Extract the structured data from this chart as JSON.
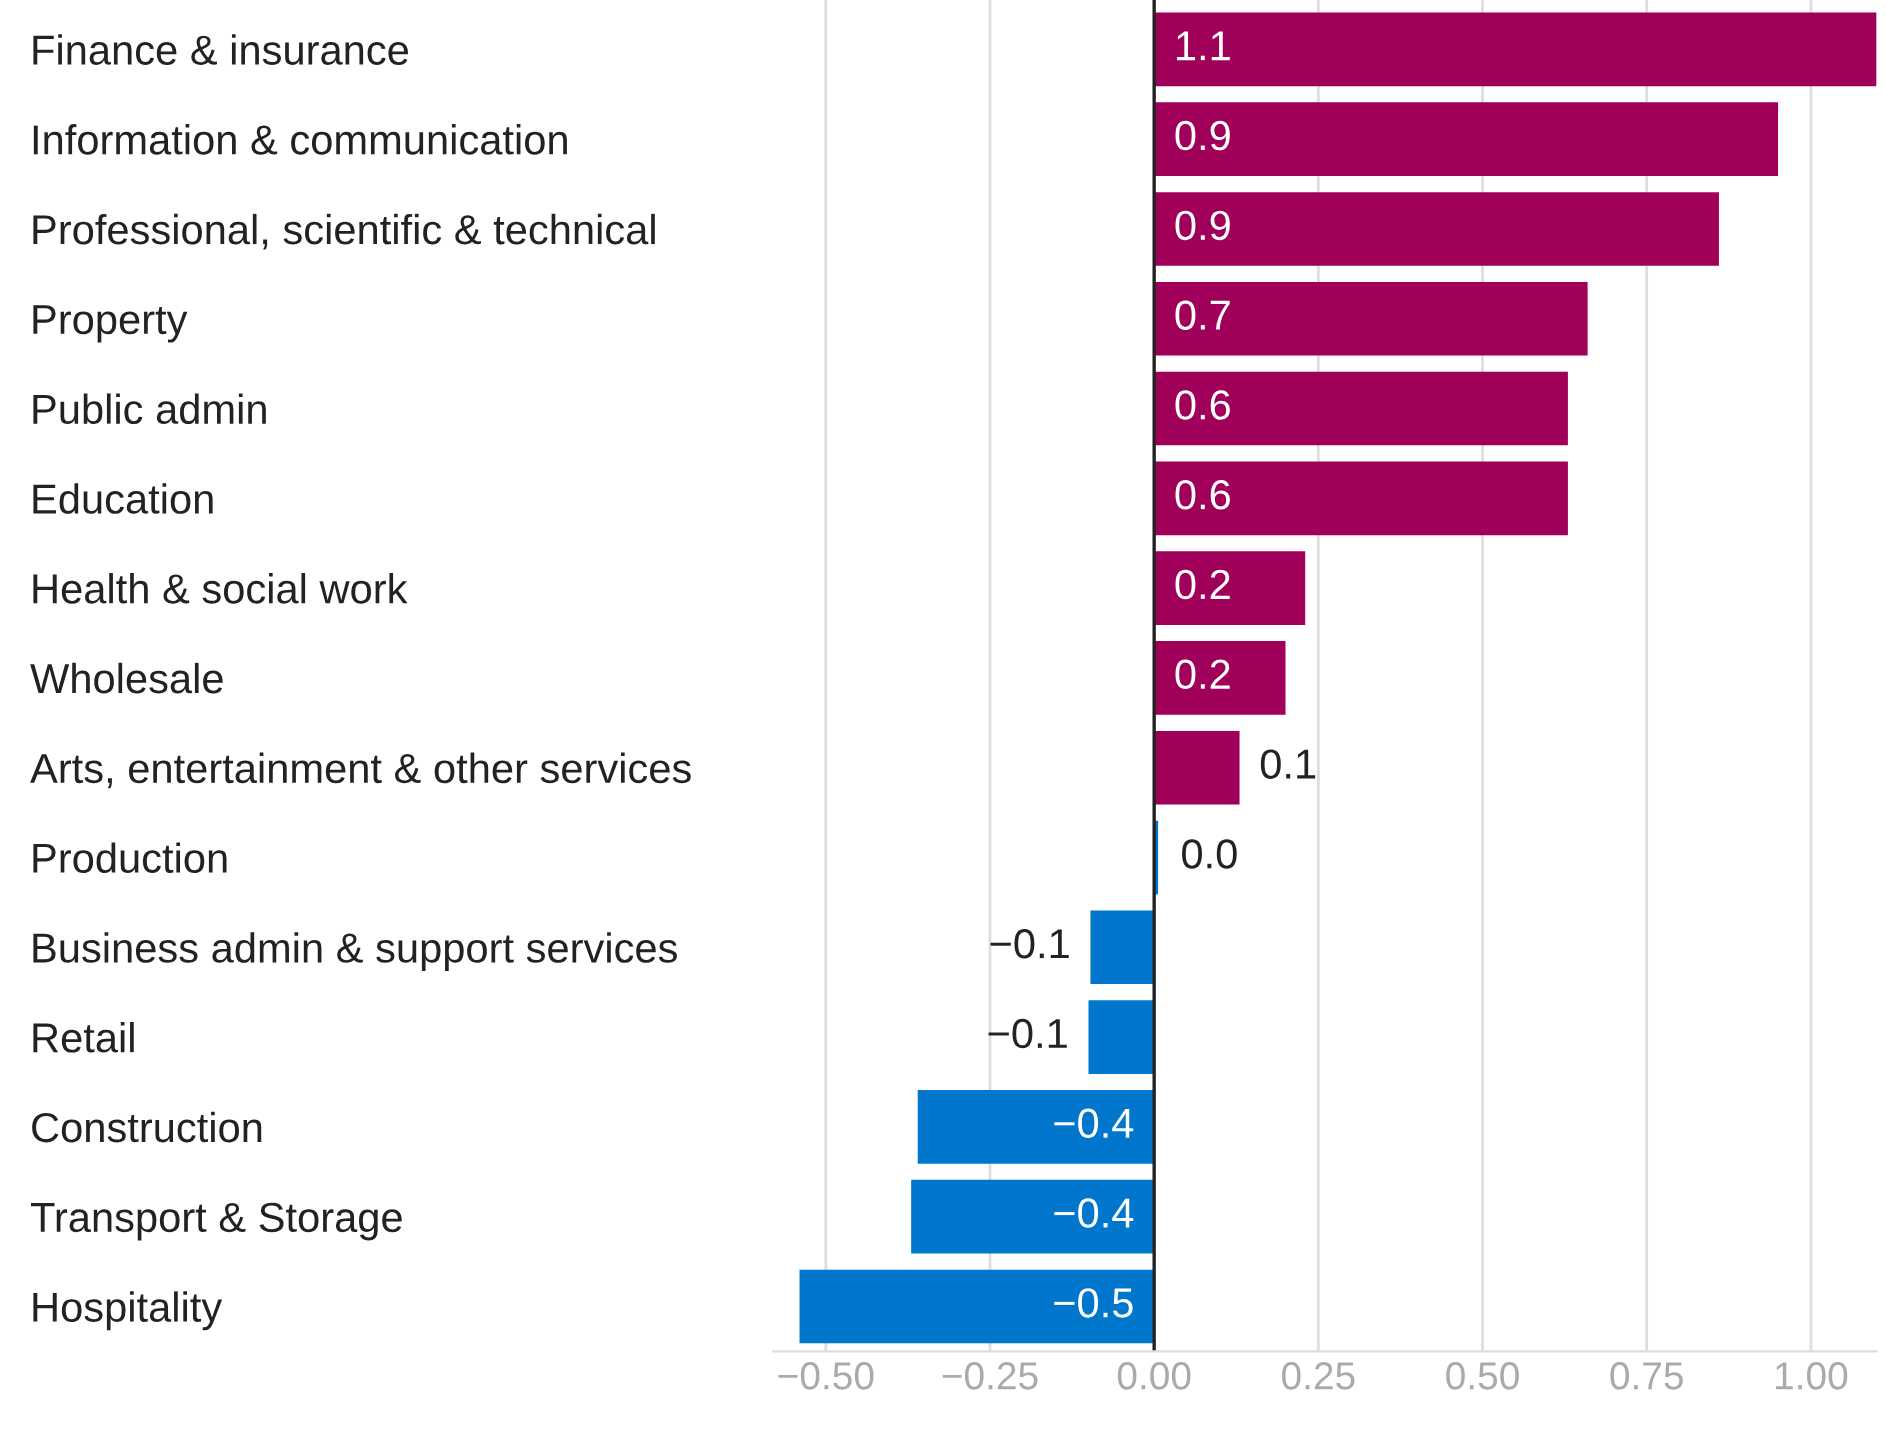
{
  "chart_data": {
    "type": "bar",
    "orientation": "horizontal",
    "categories": [
      "Finance & insurance",
      "Information & communication",
      "Professional, scientific & technical",
      "Property",
      "Public admin",
      "Education",
      "Health & social work",
      "Wholesale",
      "Arts, entertainment & other services",
      "Production",
      "Business admin & support services",
      "Retail",
      "Construction",
      "Transport & Storage",
      "Hospitality"
    ],
    "values": [
      1.1,
      0.95,
      0.86,
      0.66,
      0.63,
      0.63,
      0.23,
      0.2,
      0.13,
      0.006,
      -0.097,
      -0.1,
      -0.36,
      -0.37,
      -0.54
    ],
    "value_labels": [
      "1.1",
      "0.9",
      "0.9",
      "0.7",
      "0.6",
      "0.6",
      "0.2",
      "0.2",
      "0.1",
      "0.0",
      "−0.1",
      "−0.1",
      "−0.4",
      "−0.4",
      "−0.5"
    ],
    "colors": [
      "#a0005a",
      "#a0005a",
      "#a0005a",
      "#a0005a",
      "#a0005a",
      "#a0005a",
      "#a0005a",
      "#a0005a",
      "#a0005a",
      "#0077cc",
      "#0077cc",
      "#0077cc",
      "#0077cc",
      "#0077cc",
      "#0077cc"
    ],
    "xlim": [
      -0.58,
      1.1
    ],
    "xticks": [
      {
        "value": -0.5,
        "label": "−0.50"
      },
      {
        "value": -0.25,
        "label": "−0.25"
      },
      {
        "value": 0,
        "label": "0.00"
      },
      {
        "value": 0.25,
        "label": "0.25"
      },
      {
        "value": 0.5,
        "label": "0.50"
      },
      {
        "value": 0.75,
        "label": "0.75"
      },
      {
        "value": 1.0,
        "label": "1.00"
      }
    ],
    "grid": "x",
    "legend": false
  }
}
